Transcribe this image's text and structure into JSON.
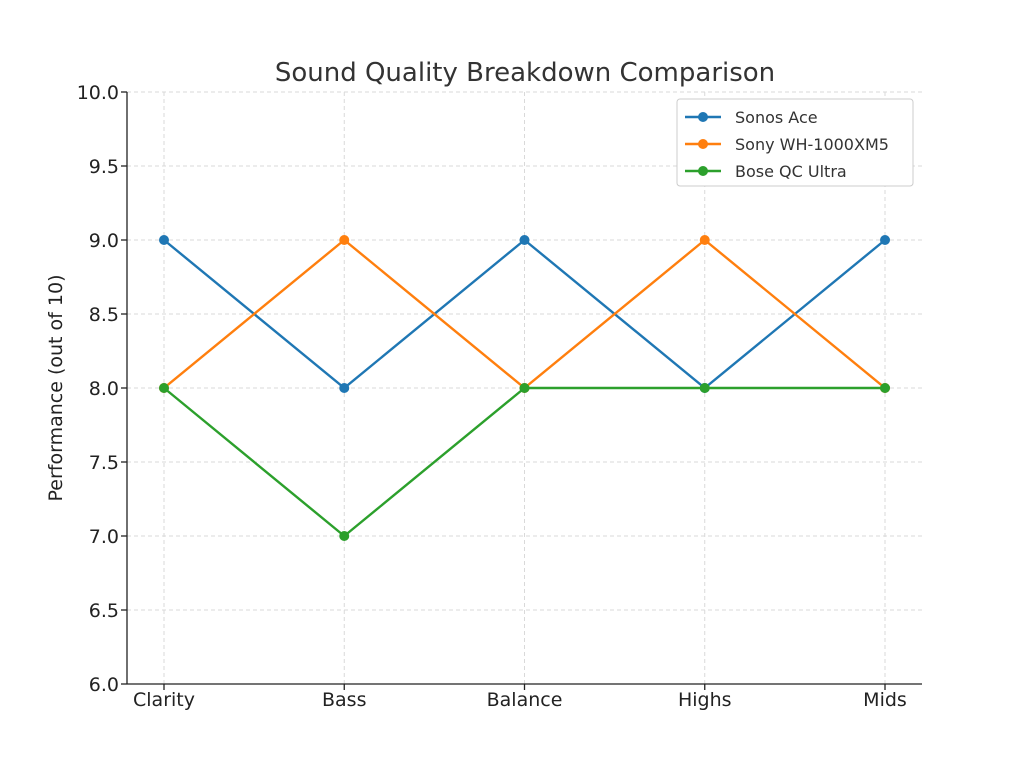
{
  "chart_data": {
    "type": "line",
    "title": "Sound Quality Breakdown Comparison",
    "xlabel": "",
    "ylabel": "Performance (out of 10)",
    "categories": [
      "Clarity",
      "Bass",
      "Balance",
      "Highs",
      "Mids"
    ],
    "ylim": [
      6.0,
      10.0
    ],
    "yticks": [
      "6.0",
      "6.5",
      "7.0",
      "7.5",
      "8.0",
      "8.5",
      "9.0",
      "9.5",
      "10.0"
    ],
    "grid": true,
    "legend_position": "top-right",
    "series": [
      {
        "name": "Sonos Ace",
        "color": "#1f77b4",
        "values": [
          9,
          8,
          9,
          8,
          9
        ]
      },
      {
        "name": "Sony WH-1000XM5",
        "color": "#ff7f0e",
        "values": [
          8,
          9,
          8,
          9,
          8
        ]
      },
      {
        "name": "Bose QC Ultra",
        "color": "#2ca02c",
        "values": [
          8,
          7,
          8,
          8,
          8
        ]
      }
    ]
  }
}
